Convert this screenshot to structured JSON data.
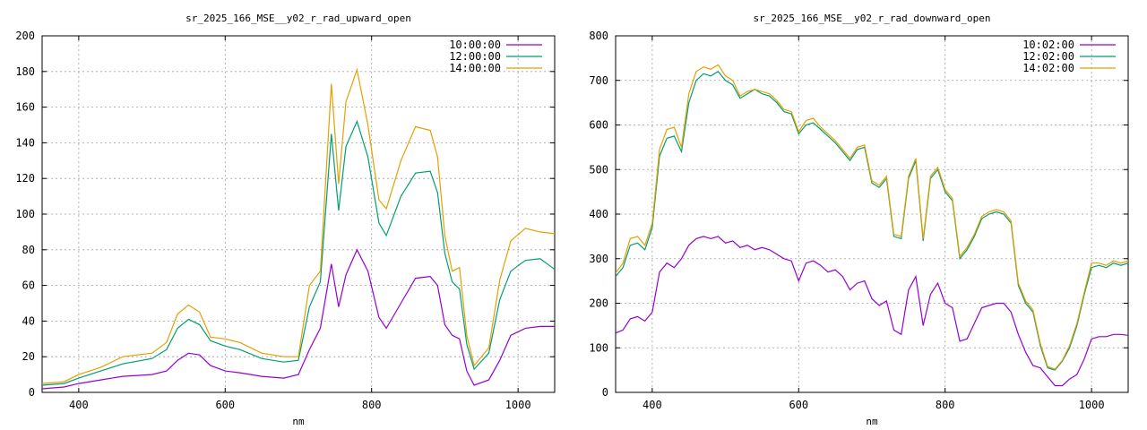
{
  "chart_data": [
    {
      "type": "line",
      "title": "sr_2025_166_MSE__y02_r_rad_upward_open",
      "xlabel": "nm",
      "ylabel": "",
      "xlim": [
        350,
        1050
      ],
      "ylim": [
        0,
        200
      ],
      "xticks": [
        400,
        600,
        800,
        1000
      ],
      "yticks": [
        0,
        20,
        40,
        60,
        80,
        100,
        120,
        140,
        160,
        180,
        200
      ],
      "grid": true,
      "legend": "top-right",
      "series": [
        {
          "name": "10:00:00",
          "color": "#9400d3",
          "x": [
            350,
            380,
            400,
            430,
            460,
            500,
            520,
            535,
            550,
            565,
            580,
            600,
            620,
            650,
            680,
            700,
            715,
            730,
            745,
            755,
            765,
            780,
            795,
            810,
            820,
            840,
            860,
            880,
            890,
            900,
            910,
            920,
            930,
            940,
            960,
            975,
            990,
            1010,
            1030,
            1050
          ],
          "y": [
            2,
            3,
            5,
            7,
            9,
            10,
            12,
            18,
            22,
            21,
            15,
            12,
            11,
            9,
            8,
            10,
            24,
            36,
            72,
            48,
            66,
            80,
            68,
            42,
            36,
            50,
            64,
            65,
            60,
            38,
            32,
            30,
            12,
            4,
            7,
            18,
            32,
            36,
            37,
            37
          ]
        },
        {
          "name": "12:00:00",
          "color": "#009e73",
          "x": [
            350,
            380,
            400,
            430,
            460,
            500,
            520,
            535,
            550,
            565,
            580,
            600,
            620,
            650,
            680,
            700,
            715,
            730,
            745,
            755,
            765,
            780,
            795,
            810,
            820,
            840,
            860,
            880,
            890,
            900,
            910,
            920,
            930,
            940,
            960,
            975,
            990,
            1010,
            1030,
            1050
          ],
          "y": [
            4,
            5,
            8,
            12,
            16,
            19,
            24,
            36,
            41,
            38,
            29,
            26,
            24,
            19,
            17,
            18,
            48,
            62,
            145,
            102,
            138,
            152,
            132,
            95,
            88,
            110,
            123,
            124,
            112,
            78,
            62,
            58,
            27,
            13,
            22,
            52,
            68,
            74,
            75,
            69
          ]
        },
        {
          "name": "14:00:00",
          "color": "#e69f00",
          "x": [
            350,
            380,
            400,
            430,
            460,
            500,
            520,
            535,
            550,
            565,
            580,
            600,
            620,
            650,
            680,
            700,
            715,
            730,
            745,
            755,
            765,
            780,
            795,
            810,
            820,
            840,
            860,
            880,
            890,
            900,
            910,
            920,
            930,
            940,
            960,
            975,
            990,
            1010,
            1030,
            1050
          ],
          "y": [
            5,
            6,
            10,
            14,
            20,
            22,
            28,
            44,
            49,
            45,
            31,
            30,
            28,
            22,
            20,
            20,
            60,
            68,
            173,
            117,
            163,
            181,
            150,
            108,
            103,
            130,
            149,
            147,
            132,
            88,
            68,
            70,
            32,
            15,
            25,
            63,
            85,
            92,
            90,
            89
          ]
        }
      ]
    },
    {
      "type": "line",
      "title": "sr_2025_166_MSE__y02_r_rad_downward_open",
      "xlabel": "nm",
      "ylabel": "",
      "xlim": [
        350,
        1050
      ],
      "ylim": [
        0,
        800
      ],
      "xticks": [
        400,
        600,
        800,
        1000
      ],
      "yticks": [
        0,
        100,
        200,
        300,
        400,
        500,
        600,
        700,
        800
      ],
      "grid": true,
      "legend": "top-right",
      "series": [
        {
          "name": "10:02:00",
          "color": "#9400d3",
          "x": [
            350,
            360,
            370,
            380,
            390,
            400,
            410,
            420,
            430,
            440,
            450,
            460,
            470,
            480,
            490,
            500,
            510,
            520,
            530,
            540,
            550,
            560,
            570,
            580,
            590,
            600,
            610,
            620,
            630,
            640,
            650,
            660,
            670,
            680,
            690,
            700,
            710,
            720,
            730,
            740,
            750,
            760,
            770,
            780,
            790,
            800,
            810,
            820,
            830,
            840,
            850,
            860,
            870,
            880,
            890,
            900,
            910,
            920,
            930,
            940,
            950,
            960,
            970,
            980,
            990,
            1000,
            1010,
            1020,
            1030,
            1040,
            1050
          ],
          "y": [
            133,
            140,
            165,
            170,
            160,
            180,
            270,
            290,
            280,
            300,
            330,
            345,
            350,
            345,
            350,
            335,
            340,
            325,
            330,
            320,
            325,
            320,
            310,
            300,
            295,
            250,
            290,
            295,
            285,
            270,
            275,
            260,
            230,
            245,
            250,
            210,
            195,
            205,
            140,
            130,
            230,
            260,
            150,
            220,
            245,
            200,
            190,
            115,
            120,
            155,
            190,
            195,
            200,
            200,
            180,
            130,
            90,
            60,
            55,
            35,
            15,
            15,
            30,
            40,
            75,
            120,
            125,
            125,
            130,
            130,
            128
          ]
        },
        {
          "name": "12:02:00",
          "color": "#009e73",
          "x": [
            350,
            360,
            370,
            380,
            390,
            400,
            410,
            420,
            430,
            440,
            450,
            460,
            470,
            480,
            490,
            500,
            510,
            520,
            530,
            540,
            550,
            560,
            570,
            580,
            590,
            600,
            610,
            620,
            630,
            640,
            650,
            660,
            670,
            680,
            690,
            700,
            710,
            720,
            730,
            740,
            750,
            760,
            770,
            780,
            790,
            800,
            810,
            820,
            830,
            840,
            850,
            860,
            870,
            880,
            890,
            900,
            910,
            920,
            930,
            940,
            950,
            960,
            970,
            980,
            990,
            1000,
            1010,
            1020,
            1030,
            1040,
            1050
          ],
          "y": [
            260,
            280,
            330,
            335,
            320,
            370,
            530,
            570,
            575,
            540,
            650,
            700,
            715,
            710,
            720,
            700,
            690,
            660,
            670,
            680,
            670,
            665,
            650,
            630,
            625,
            580,
            600,
            605,
            590,
            575,
            560,
            540,
            520,
            545,
            550,
            470,
            460,
            480,
            350,
            345,
            480,
            520,
            340,
            480,
            500,
            450,
            430,
            300,
            320,
            350,
            390,
            400,
            405,
            400,
            380,
            240,
            200,
            180,
            105,
            55,
            50,
            70,
            100,
            150,
            220,
            280,
            285,
            280,
            290,
            285,
            290
          ]
        },
        {
          "name": "14:02:00",
          "color": "#e69f00",
          "x": [
            350,
            360,
            370,
            380,
            390,
            400,
            410,
            420,
            430,
            440,
            450,
            460,
            470,
            480,
            490,
            500,
            510,
            520,
            530,
            540,
            550,
            560,
            570,
            580,
            590,
            600,
            610,
            620,
            630,
            640,
            650,
            660,
            670,
            680,
            690,
            700,
            710,
            720,
            730,
            740,
            750,
            760,
            770,
            780,
            790,
            800,
            810,
            820,
            830,
            840,
            850,
            860,
            870,
            880,
            890,
            900,
            910,
            920,
            930,
            940,
            950,
            960,
            970,
            980,
            990,
            1000,
            1010,
            1020,
            1030,
            1040,
            1050
          ],
          "y": [
            268,
            290,
            345,
            350,
            330,
            380,
            545,
            590,
            595,
            550,
            670,
            720,
            730,
            725,
            735,
            710,
            700,
            665,
            675,
            680,
            675,
            670,
            655,
            635,
            630,
            585,
            610,
            615,
            595,
            580,
            565,
            545,
            525,
            550,
            555,
            475,
            465,
            485,
            355,
            350,
            485,
            525,
            345,
            485,
            505,
            455,
            435,
            305,
            325,
            355,
            395,
            405,
            410,
            405,
            385,
            245,
            205,
            185,
            110,
            58,
            52,
            72,
            105,
            155,
            225,
            290,
            290,
            285,
            295,
            290,
            295
          ]
        }
      ]
    }
  ]
}
